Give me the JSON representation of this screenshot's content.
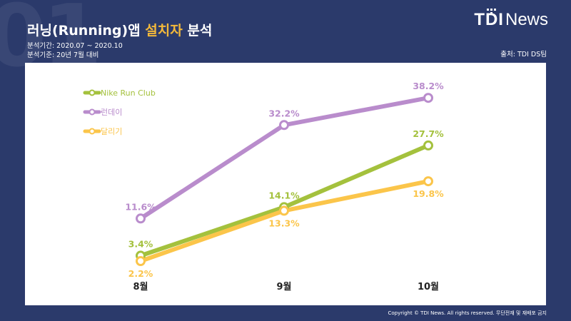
{
  "header": {
    "title_prefix": "러닝(Running)앱 ",
    "title_highlight": "설치자",
    "title_suffix": " 분석",
    "period": "분석기간: 2020.07 ~ 2020.10",
    "baseline": "분석기준: 20년 7월 대비",
    "source": "출처: TDI DS팀",
    "logo_bold": "TDI",
    "logo_light": "News",
    "copyright": "Copyright © TDI News. All rights reserved. 무단전재 및 재배포 금지",
    "bg_number": "01"
  },
  "colors": {
    "background": "#2b3a6b",
    "panel": "#ffffff",
    "highlight": "#f4b93a"
  },
  "chart_data": {
    "type": "line",
    "categories": [
      "8월",
      "9월",
      "10월"
    ],
    "series": [
      {
        "name": "Nike Run Club",
        "values": [
          3.4,
          14.1,
          27.7
        ],
        "labels": [
          "3.4%",
          "14.1%",
          "27.7%"
        ],
        "color": "#a4c13d",
        "label_position": [
          "above",
          "above",
          "above"
        ]
      },
      {
        "name": "런데이",
        "values": [
          11.6,
          32.2,
          38.2
        ],
        "labels": [
          "11.6%",
          "32.2%",
          "38.2%"
        ],
        "color": "#b98ccc",
        "label_position": [
          "above",
          "above",
          "above"
        ]
      },
      {
        "name": "달리기",
        "values": [
          2.2,
          13.3,
          19.8
        ],
        "labels": [
          "2.2%",
          "13.3%",
          "19.8%"
        ],
        "color": "#fbc54a",
        "label_position": [
          "below",
          "below",
          "below"
        ]
      }
    ],
    "ylim": [
      0,
      42
    ],
    "grid": false,
    "legend_position": "top-left",
    "title": "러닝(Running)앱 설치자 분석"
  }
}
